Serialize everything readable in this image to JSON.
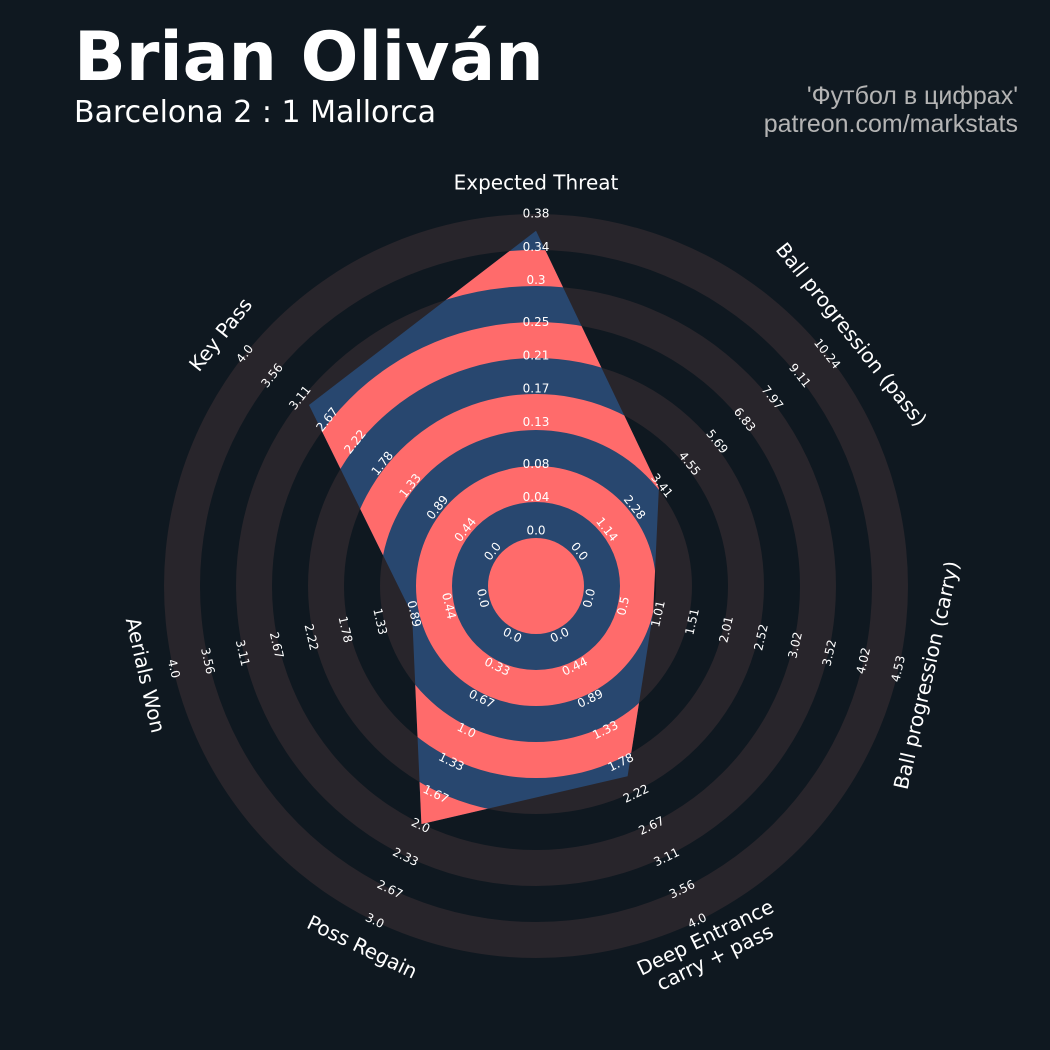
{
  "chart_data": {
    "type": "radar",
    "title": "Brian Oliván",
    "subtitle": "Barcelona 2 : 1 Mallorca",
    "credits": [
      "'Футбол в цифрах'",
      "patreon.com/markstats"
    ],
    "categories": [
      "Expected Threat",
      "Ball progression (pass)",
      "Ball progression (carry)",
      [
        "Deep Entrance",
        "carry + pass"
      ],
      "Poss Regain",
      "Aerials Won",
      "Key Pass"
    ],
    "values": [
      0.36,
      3.3,
      0.93,
      1.97,
      1.98,
      0.91,
      2.97
    ],
    "color": "#28476f",
    "ring_color": "#ff6b6b",
    "background_ring_color": "#28252b",
    "axes": [
      {
        "lim": [
          0,
          0.38
        ],
        "ticks": [
          {
            "value": 0,
            "label": "0.0"
          },
          0.04,
          0.08,
          0.13,
          0.17,
          0.21,
          0.25,
          0.3,
          0.34,
          0.38
        ]
      },
      {
        "lim": [
          0,
          10.24
        ],
        "ticks": [
          {
            "value": 0,
            "label": "0.0"
          },
          1.14,
          2.28,
          3.41,
          4.55,
          5.69,
          6.83,
          7.97,
          9.11,
          10.24
        ]
      },
      {
        "lim": [
          0,
          4.53
        ],
        "ticks": [
          {
            "value": 0,
            "label": "0.0"
          },
          0.5,
          1.01,
          1.51,
          2.01,
          2.52,
          3.02,
          3.52,
          4.02,
          4.53
        ]
      },
      {
        "lim": [
          0,
          4
        ],
        "ticks": [
          {
            "value": 0,
            "label": "0.0"
          },
          0.44,
          0.89,
          1.33,
          1.78,
          2.22,
          2.67,
          3.11,
          3.56,
          {
            "value": 4,
            "label": "4.0"
          }
        ]
      },
      {
        "lim": [
          0,
          3
        ],
        "ticks": [
          {
            "value": 0,
            "label": "0.0"
          },
          0.33,
          0.67,
          {
            "value": 1,
            "label": "1.0"
          },
          1.33,
          1.67,
          {
            "value": 2,
            "label": "2.0"
          },
          2.33,
          2.67,
          {
            "value": 3,
            "label": "3.0"
          }
        ]
      },
      {
        "lim": [
          0,
          4
        ],
        "ticks": [
          {
            "value": 0,
            "label": "0.0"
          },
          0.44,
          0.89,
          1.33,
          1.78,
          2.22,
          2.67,
          3.11,
          3.56,
          {
            "value": 4,
            "label": "4.0"
          }
        ]
      },
      {
        "lim": [
          0,
          4
        ],
        "ticks": [
          {
            "value": 0,
            "label": "0.0"
          },
          0.44,
          0.89,
          1.33,
          1.78,
          2.22,
          2.67,
          3.11,
          3.56,
          {
            "value": 4,
            "label": "4.0"
          }
        ]
      }
    ]
  }
}
